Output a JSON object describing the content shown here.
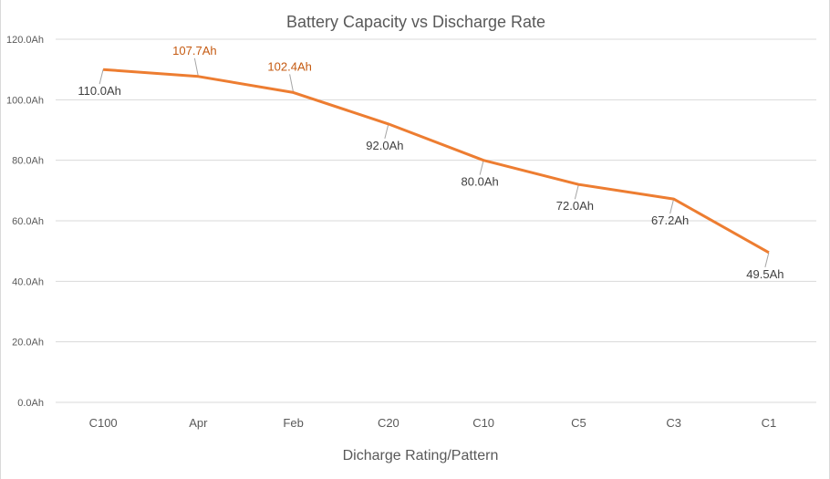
{
  "chart_data": {
    "type": "line",
    "title": "Battery Capacity vs Discharge Rate",
    "xlabel": "Dicharge Rating/Pattern",
    "ylabel": "",
    "categories": [
      "C100",
      "Apr",
      "Feb",
      "C20",
      "C10",
      "C5",
      "C3",
      "C1"
    ],
    "series": [
      {
        "name": "Capacity",
        "values": [
          110.0,
          107.7,
          102.4,
          92.0,
          80.0,
          72.0,
          67.2,
          49.5
        ],
        "color": "#ed7d31"
      }
    ],
    "data_labels": [
      "110.0Ah",
      "107.7Ah",
      "102.4Ah",
      "92.0Ah",
      "80.0Ah",
      "72.0Ah",
      "67.2Ah",
      "49.5Ah"
    ],
    "data_label_placement": [
      "below",
      "above",
      "above",
      "below",
      "below",
      "below",
      "below",
      "below"
    ],
    "data_label_colors": [
      "#404040",
      "#c55a11",
      "#c55a11",
      "#404040",
      "#404040",
      "#404040",
      "#404040",
      "#404040"
    ],
    "ylim": [
      0,
      120
    ],
    "yticks": [
      0,
      20,
      40,
      60,
      80,
      100,
      120
    ],
    "ytick_labels": [
      "0.0Ah",
      "20.0Ah",
      "40.0Ah",
      "60.0Ah",
      "80.0Ah",
      "100.0Ah",
      "120.0Ah"
    ],
    "grid": true,
    "legend": "none"
  }
}
